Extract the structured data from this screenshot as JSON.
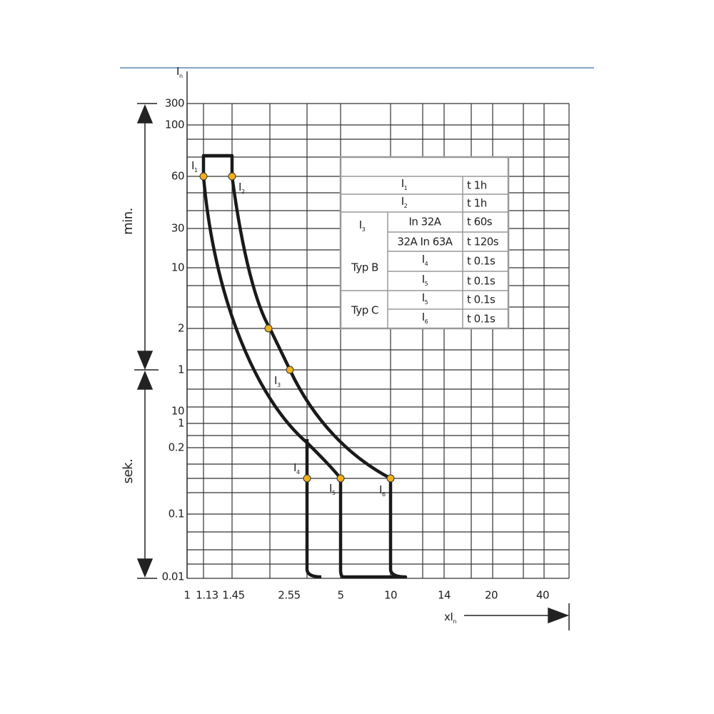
{
  "axis": {
    "y_title": {
      "main": "I",
      "sub": "n"
    },
    "x_title": {
      "main": "xI",
      "sub": "n"
    },
    "min_label": "min.",
    "sek_label": "sek."
  },
  "y_labels": [
    "300",
    "100",
    "60",
    "30",
    "10",
    "2",
    "1",
    "10",
    "1",
    "0.2",
    "0.1",
    "0.01"
  ],
  "x_labels": [
    "1",
    "1.13",
    "1.45",
    "2.55",
    "5",
    "10",
    "14",
    "20",
    "40"
  ],
  "curve_labels": [
    {
      "main": "I",
      "sub": "1"
    },
    {
      "main": "I",
      "sub": "2"
    },
    {
      "main": "I",
      "sub": "3"
    },
    {
      "main": "I",
      "sub": "4"
    },
    {
      "main": "I",
      "sub": "5"
    },
    {
      "main": "I",
      "sub": "6"
    }
  ],
  "table": {
    "rows": [
      {
        "label": {
          "main": "I",
          "sub": "1"
        },
        "time": "t  1h"
      },
      {
        "label": {
          "main": "I",
          "sub": "2"
        },
        "time": "t  1h"
      },
      {
        "label": "In  32A",
        "time": "t  60s"
      },
      {
        "label": "32A In 63A",
        "time": "t  120s"
      },
      {
        "label": {
          "main": "I",
          "sub": "4"
        },
        "time": "t  0.1s"
      },
      {
        "label": {
          "main": "I",
          "sub": "5"
        },
        "time": "t  0.1s"
      },
      {
        "label": {
          "main": "I",
          "sub": "5"
        },
        "time": "t  0.1s"
      },
      {
        "label": {
          "main": "I",
          "sub": "6"
        },
        "time": "t  0.1s"
      }
    ],
    "group_i3": {
      "main": "I",
      "sub": "3"
    },
    "typ_b": "Typ B",
    "typ_c": "Typ C"
  }
}
